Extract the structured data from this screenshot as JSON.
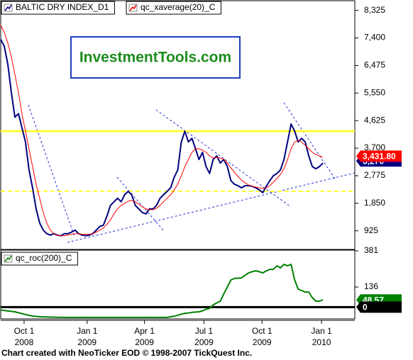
{
  "chart_data": [
    {
      "type": "line",
      "watermark": "InvestmentTools.com",
      "xlim": [
        0,
        100
      ],
      "ylim": [
        300,
        8650
      ],
      "yticks": [
        {
          "value": 8325,
          "label": "8,325"
        },
        {
          "value": 7400,
          "label": "7,400"
        },
        {
          "value": 6475,
          "label": "6,475"
        },
        {
          "value": 5550,
          "label": "5,550"
        },
        {
          "value": 4625,
          "label": "4,625"
        },
        {
          "value": 3700,
          "label": "3,700"
        },
        {
          "value": 2775,
          "label": "2,775"
        },
        {
          "value": 1850,
          "label": "1,850"
        },
        925
      ],
      "hlines": [
        {
          "value": 4270,
          "color": "#ffff33",
          "dash": false
        },
        {
          "value": 2250,
          "color": "#ffff33",
          "dash": true
        }
      ],
      "value_tags": [
        {
          "value": 3270,
          "label": "3,270",
          "color": "#000080"
        },
        {
          "value": 3431.8,
          "label": "3,431.80",
          "color": "#ff0000"
        }
      ],
      "series": [
        {
          "name": "BALTIC DRY INDEX_D1",
          "color": "#000080",
          "values": [
            7350,
            7120,
            6520,
            5570,
            4740,
            4860,
            4390,
            3910,
            2970,
            2370,
            1660,
            1190,
            950,
            830,
            780,
            830,
            780,
            760,
            830,
            830,
            880,
            950,
            830,
            780,
            760,
            780,
            830,
            950,
            1070,
            1115,
            1420,
            1780,
            1900,
            2020,
            1900,
            2135,
            2250,
            2135,
            1780,
            1660,
            1540,
            1495,
            1660,
            1660,
            1780,
            2020,
            2135,
            2250,
            2370,
            2730,
            2970,
            3910,
            4270,
            3910,
            4030,
            3680,
            3320,
            3560,
            3080,
            2850,
            3320,
            3440,
            3200,
            3320,
            3080,
            2610,
            2490,
            2440,
            2370,
            2440,
            2440,
            2420,
            2370,
            2300,
            2205,
            2420,
            2610,
            2775,
            2850,
            2970,
            3320,
            3910,
            4510,
            4270,
            3910,
            4030,
            3910,
            3440,
            3080,
            3010,
            3080,
            3200
          ]
        },
        {
          "name": "qc_xaverage(20)_C",
          "color": "#ff0000",
          "values": [
            7830,
            7590,
            7230,
            6760,
            6170,
            5570,
            4860,
            4270,
            3680,
            3080,
            2490,
            2020,
            1540,
            1190,
            950,
            830,
            780,
            760,
            760,
            780,
            810,
            830,
            830,
            810,
            810,
            810,
            830,
            880,
            950,
            1020,
            1140,
            1300,
            1495,
            1660,
            1780,
            1850,
            1920,
            1945,
            1900,
            1825,
            1730,
            1660,
            1635,
            1635,
            1685,
            1780,
            1900,
            2020,
            2135,
            2300,
            2490,
            2775,
            3080,
            3320,
            3560,
            3680,
            3680,
            3630,
            3560,
            3440,
            3370,
            3390,
            3370,
            3320,
            3200,
            3035,
            2895,
            2750,
            2630,
            2540,
            2465,
            2420,
            2395,
            2370,
            2350,
            2370,
            2440,
            2560,
            2680,
            2820,
            3010,
            3320,
            3680,
            3910,
            3960,
            3910,
            3790,
            3680,
            3560,
            3490,
            3440,
            3390
          ]
        }
      ]
    },
    {
      "type": "line",
      "xlim": [
        0,
        100
      ],
      "ylim": [
        -80,
        386
      ],
      "yticks": [
        381,
        136
      ],
      "hlines": [
        {
          "value": 0,
          "color": "#000000",
          "dash": false
        }
      ],
      "value_tags": [
        {
          "value": 48.57,
          "label": "48.57",
          "color": "#008000"
        },
        {
          "value": 0,
          "label": "0",
          "color": "#000000"
        }
      ],
      "xticks": [
        {
          "value": 6.6,
          "label": "Oct 1"
        },
        {
          "value": 24.4,
          "label": "Jan 1"
        },
        {
          "value": 40.6,
          "label": "Apr 1"
        },
        {
          "value": 57.4,
          "label": "Jul 1"
        },
        {
          "value": 73.8,
          "label": "Oct 1"
        },
        {
          "value": 90.6,
          "label": "Jan 1"
        }
      ],
      "xtick_years": [
        "2008",
        "2009",
        "2009",
        "2009",
        "2009",
        "2010"
      ],
      "series": [
        {
          "name": "qc_roc(200)_C",
          "color": "#008000",
          "values": [
            -20,
            -23,
            -26,
            -29,
            -32,
            -38,
            -44,
            -50,
            -56,
            -60,
            -63,
            -65,
            -66,
            -67,
            -68,
            -68,
            -69,
            -69,
            -70,
            -70,
            -70,
            -70,
            -70,
            -70,
            -70,
            -70,
            -70,
            -70,
            -70,
            -70,
            -70,
            -70,
            -70,
            -70,
            -70,
            -70,
            -70,
            -70,
            -70,
            -70,
            -70,
            -70,
            -70,
            -70,
            -70,
            -70,
            -70,
            -70,
            -65,
            -62,
            -55,
            -48,
            -42,
            -40,
            -36,
            -34,
            -32,
            -25,
            -15,
            -8,
            15,
            28,
            40,
            90,
            136,
            184,
            194,
            196,
            198,
            215,
            232,
            240,
            246,
            240,
            232,
            245,
            256,
            256,
            280,
            266,
            290,
            280,
            290,
            184,
            122,
            112,
            102,
            102,
            64,
            40,
            40,
            49
          ]
        }
      ]
    }
  ],
  "footer": "Chart created with NeoTicker EOD © 1998-2007 TickQuest Inc."
}
